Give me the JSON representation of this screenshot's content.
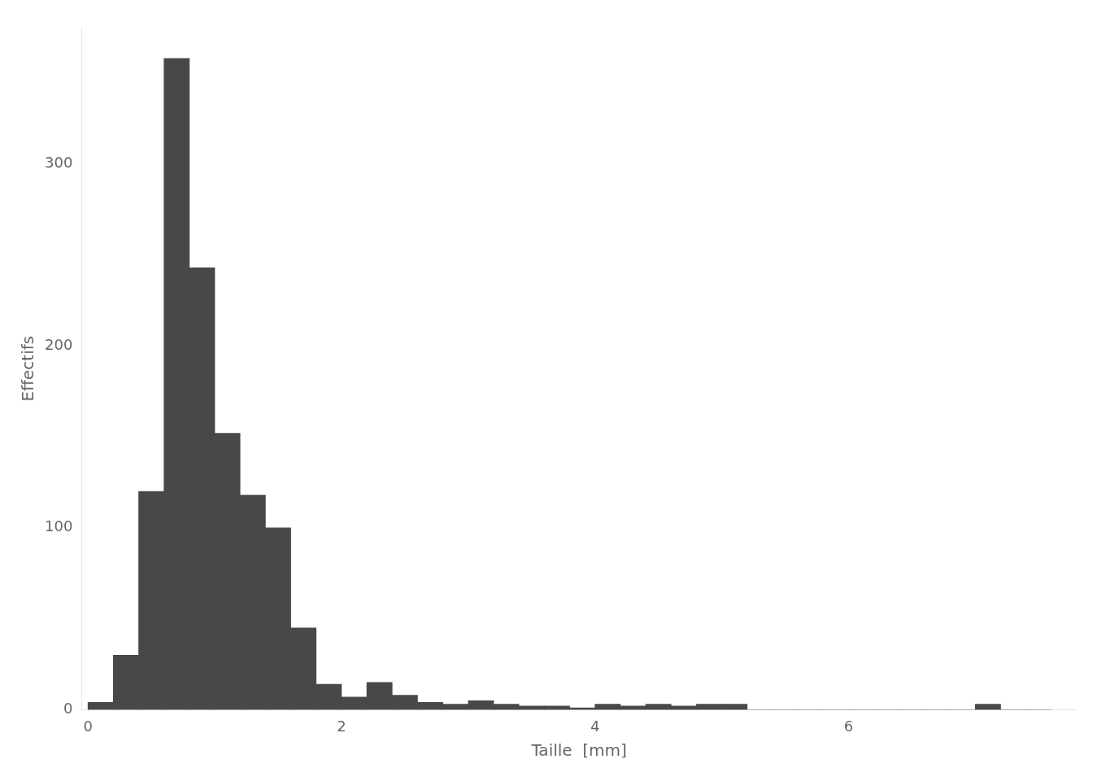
{
  "chart_data": {
    "type": "histogram",
    "xlabel": "Taille  [mm]",
    "ylabel": "Effectifs",
    "bins": [
      0.0,
      0.2,
      0.4,
      0.6,
      0.8,
      1.0,
      1.2,
      1.4,
      1.6,
      1.8,
      2.0,
      2.2,
      2.4,
      2.6,
      2.8,
      3.0,
      3.2,
      3.4,
      3.6,
      3.8,
      4.0,
      4.2,
      4.4,
      4.6,
      4.8,
      5.0,
      5.2,
      5.4,
      5.6,
      5.8,
      6.0,
      6.2,
      6.4,
      6.6,
      6.8,
      7.0,
      7.2,
      7.4,
      7.6
    ],
    "counts": [
      4,
      30,
      120,
      358,
      243,
      152,
      118,
      100,
      45,
      14,
      7,
      15,
      8,
      4,
      3,
      5,
      3,
      2,
      2,
      1,
      3,
      2,
      3,
      2,
      3,
      3,
      0,
      0,
      0,
      0,
      0,
      0,
      0,
      0,
      0,
      3,
      0,
      0
    ],
    "color": "#484848",
    "xlim": [
      -0.05,
      7.8
    ],
    "ylim": [
      0,
      375
    ],
    "xticks": [
      0,
      2,
      4,
      6
    ],
    "yticks": [
      0,
      100,
      200,
      300
    ],
    "grid": false
  }
}
